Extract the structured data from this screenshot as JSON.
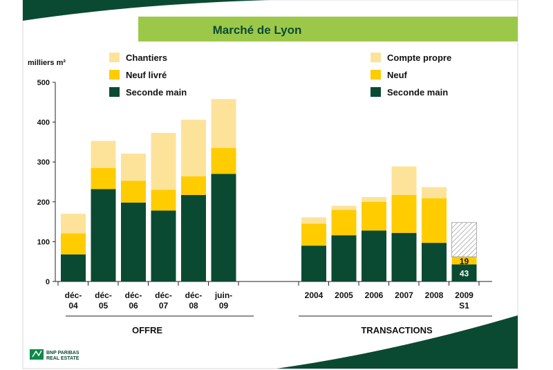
{
  "title": "Marché de Lyon",
  "colors": {
    "banner": "#9cc84a",
    "title": "#0b4a32",
    "dark_green": "#0b4a32",
    "yellow": "#ffcc00",
    "light_yellow": "#fde39a",
    "hatch": "#bdbdbd"
  },
  "logo": {
    "line1": "BNP PARIBAS",
    "line2": "REAL ESTATE"
  },
  "chart_data": {
    "type": "bar",
    "stacked": true,
    "ylabel": "milliers m²",
    "ylim": [
      0,
      500
    ],
    "yticks": [
      0,
      100,
      200,
      300,
      400,
      500
    ],
    "grid": false,
    "groups": [
      {
        "name": "OFFRE",
        "categories": [
          [
            "déc-",
            "04"
          ],
          [
            "déc-",
            "05"
          ],
          [
            "déc-",
            "06"
          ],
          [
            "déc-",
            "07"
          ],
          [
            "déc-",
            "08"
          ],
          [
            "juin-",
            "09"
          ]
        ],
        "legend": [
          "Chantiers",
          "Neuf livré",
          "Seconde main"
        ],
        "legend_position": "top-left",
        "series": [
          {
            "name": "Seconde main",
            "color": "#0b4a32",
            "values": [
              68,
              232,
              198,
              178,
              217,
              270
            ]
          },
          {
            "name": "Neuf livré",
            "color": "#ffcc00",
            "values": [
              53,
              53,
              55,
              52,
              47,
              65
            ]
          },
          {
            "name": "Chantiers",
            "color": "#fde39a",
            "values": [
              49,
              68,
              68,
              143,
              142,
              123
            ]
          }
        ]
      },
      {
        "name": "TRANSACTIONS",
        "categories": [
          [
            "2004"
          ],
          [
            "2005"
          ],
          [
            "2006"
          ],
          [
            "2007"
          ],
          [
            "2008"
          ],
          [
            "2009",
            "S1"
          ]
        ],
        "legend": [
          "Compte propre",
          "Neuf",
          "Seconde main"
        ],
        "legend_position": "top-right",
        "series": [
          {
            "name": "Seconde main",
            "color": "#0b4a32",
            "values": [
              90,
              116,
              128,
              122,
              97,
              43
            ]
          },
          {
            "name": "Neuf",
            "color": "#ffcc00",
            "values": [
              55,
              64,
              72,
              95,
              112,
              19
            ]
          },
          {
            "name": "Compte propre",
            "color": "#fde39a",
            "values": [
              16,
              10,
              12,
              72,
              28,
              0
            ]
          }
        ],
        "projected": {
          "category_index": 5,
          "top_value": 148,
          "note": "hatched estimate"
        },
        "data_labels": [
          {
            "category_index": 5,
            "series": "Seconde main",
            "text": "43"
          },
          {
            "category_index": 5,
            "series": "Neuf",
            "text": "19"
          }
        ]
      }
    ]
  }
}
